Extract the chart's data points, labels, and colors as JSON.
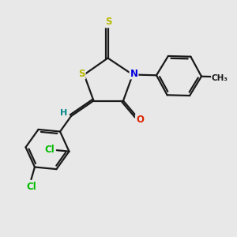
{
  "bg_color": "#e8e8e8",
  "bond_color": "#1a1a1a",
  "bond_width": 1.6,
  "atom_colors": {
    "S": "#b8b800",
    "N": "#0000dd",
    "O": "#dd2200",
    "Cl": "#00bb00",
    "H": "#008888",
    "C": "#1a1a1a"
  },
  "fs": 8.5
}
